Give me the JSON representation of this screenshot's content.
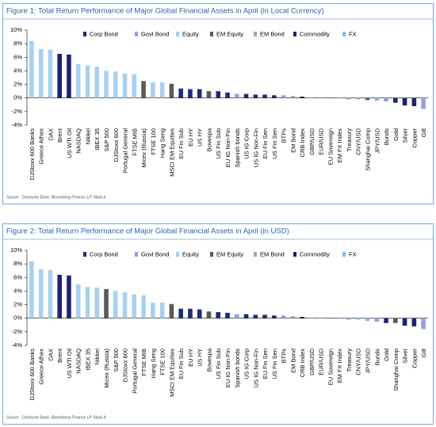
{
  "chart_data": [
    {
      "type": "bar",
      "title": "Figure 1: Total Return Performance of Major Global Financial Assets in April (in Local Currency)",
      "categories": [
        "DJStoxx 600 Banks",
        "Greece Athex",
        "DAX",
        "Brent",
        "US WTI Oil",
        "NASDAQ",
        "Nikkei",
        "IBEX 35",
        "S&P 500",
        "DJStoxx 600",
        "Portugal General",
        "FTSE MIB",
        "Micex (Russia)",
        "FTSE 100",
        "Hang Seng",
        "MSCI EM Equities",
        "EU Fin Sub",
        "EU HY",
        "US HY",
        "Bovespa",
        "US Fin Sub",
        "EU IG Non-Fin",
        "Spanish bonds",
        "US IG Corp",
        "US IG Non-Fin",
        "EU Fin Sen",
        "US Fin Sen",
        "BTPs",
        "EM Bond",
        "CRB Index",
        "GBP/USD",
        "EUR/USD",
        "EU Sovereign",
        "EM FX Index",
        "Treasury",
        "CNY/USD",
        "Shanghai Comp",
        "JPY/USD",
        "Bunds",
        "Gold",
        "Silver",
        "Copper",
        "Gilt"
      ],
      "values": [
        8.4,
        7.2,
        7.1,
        6.5,
        6.4,
        5.0,
        4.8,
        4.6,
        4.0,
        3.9,
        3.6,
        3.5,
        2.5,
        2.3,
        2.3,
        2.1,
        1.4,
        1.3,
        1.3,
        1.0,
        1.0,
        0.8,
        0.6,
        0.6,
        0.5,
        0.5,
        0.4,
        0.4,
        0.3,
        0.2,
        0.1,
        0.05,
        0.0,
        -0.05,
        -0.2,
        -0.2,
        -0.3,
        -0.4,
        -0.5,
        -0.7,
        -1.1,
        -1.2,
        -1.6
      ],
      "colors": [
        "#a8d0f0",
        "#a8d0f0",
        "#a8d0f0",
        "#1c2470",
        "#1c2470",
        "#a8d0f0",
        "#a8d0f0",
        "#a8d0f0",
        "#a8d0f0",
        "#a8d0f0",
        "#a8d0f0",
        "#a8d0f0",
        "#5a5a5a",
        "#a8d0f0",
        "#a8d0f0",
        "#5a5a5a",
        "#1f2a7a",
        "#1f2a7a",
        "#1f2a7a",
        "#5a5a5a",
        "#1f2a7a",
        "#1f2a7a",
        "#9a9ee0",
        "#1f2a7a",
        "#1f2a7a",
        "#1f2a7a",
        "#1f2a7a",
        "#9a9ee0",
        "#a6a6a6",
        "#1c2470",
        "#8fb8e6",
        "#8fb8e6",
        "#9a9ee0",
        "#8fb8e6",
        "#9a9ee0",
        "#8fb8e6",
        "#5a5a5a",
        "#8fb8e6",
        "#9a9ee0",
        "#1c2470",
        "#1c2470",
        "#1c2470",
        "#9a9ee0"
      ],
      "legend": [
        {
          "name": "Corp Bond",
          "color": "#1f2a7a"
        },
        {
          "name": "Govt Bond",
          "color": "#9a9ee0"
        },
        {
          "name": "Equity",
          "color": "#a8d0f0"
        },
        {
          "name": "EM Equity",
          "color": "#5a5a5a"
        },
        {
          "name": "EM Bond",
          "color": "#a6a6a6"
        },
        {
          "name": "Commodity",
          "color": "#1c2470"
        },
        {
          "name": "FX",
          "color": "#8fb8e6"
        }
      ],
      "ylim": [
        -4,
        10
      ],
      "yticks": [
        {
          "value": -4,
          "label": "-4%"
        },
        {
          "value": -2,
          "label": "-2%"
        },
        {
          "value": 0,
          "label": "0%"
        },
        {
          "value": 2,
          "label": "2%"
        },
        {
          "value": 4,
          "label": "4%"
        },
        {
          "value": 6,
          "label": "6%"
        },
        {
          "value": 8,
          "label": "8%"
        },
        {
          "value": 10,
          "label": "10%"
        }
      ],
      "source": "Source : Deutsche Bank, Bloomberg Finance LP, Mark-It"
    },
    {
      "type": "bar",
      "title": "Figure 2: Total Return Performance of Major Global Financial Assets in April (in USD)",
      "categories": [
        "DJStoxx 600 Banks",
        "Greece Athex",
        "DAX",
        "Brent",
        "US WTI Oil",
        "NASDAQ",
        "IBEX 35",
        "Nikkei",
        "Micex (Russia)",
        "S&P 500",
        "DJStoxx 600",
        "Portugal General",
        "FTSE MIB",
        "Hang Seng",
        "FTSE 100",
        "MSCI EM Equities",
        "EU Fin Sub",
        "EU HY",
        "US HY",
        "Bovespa",
        "US Fin Sub",
        "EU IG Non-Fin",
        "Spanish bonds",
        "US IG Corp",
        "US IG Non-Fin",
        "EU Fin Sen",
        "US Fin Sen",
        "BTPs",
        "EM Bond",
        "CRB Index",
        "GBP/USD",
        "EUR/USD",
        "EU Sovereign",
        "EM FX Index",
        "Treasury",
        "CNY/USD",
        "JPY/USD",
        "Bunds",
        "Gold",
        "Shanghai Comp",
        "Silver",
        "Copper",
        "Gilt"
      ],
      "values": [
        8.4,
        7.2,
        7.1,
        6.4,
        6.3,
        5.0,
        4.6,
        4.5,
        4.3,
        4.0,
        3.8,
        3.5,
        3.4,
        2.3,
        2.3,
        2.1,
        1.4,
        1.4,
        1.3,
        1.0,
        0.9,
        0.8,
        0.6,
        0.6,
        0.5,
        0.5,
        0.4,
        0.4,
        0.3,
        0.2,
        0.1,
        0.05,
        0.0,
        -0.05,
        -0.2,
        -0.2,
        -0.4,
        -0.5,
        -0.7,
        -0.7,
        -1.1,
        -1.2,
        -1.6
      ],
      "colors": [
        "#a8d0f0",
        "#a8d0f0",
        "#a8d0f0",
        "#1c2470",
        "#1c2470",
        "#a8d0f0",
        "#a8d0f0",
        "#a8d0f0",
        "#5a5a5a",
        "#a8d0f0",
        "#a8d0f0",
        "#a8d0f0",
        "#a8d0f0",
        "#a8d0f0",
        "#a8d0f0",
        "#5a5a5a",
        "#1f2a7a",
        "#1f2a7a",
        "#1f2a7a",
        "#5a5a5a",
        "#1f2a7a",
        "#1f2a7a",
        "#9a9ee0",
        "#1f2a7a",
        "#1f2a7a",
        "#1f2a7a",
        "#1f2a7a",
        "#9a9ee0",
        "#a6a6a6",
        "#1c2470",
        "#8fb8e6",
        "#8fb8e6",
        "#9a9ee0",
        "#8fb8e6",
        "#9a9ee0",
        "#8fb8e6",
        "#8fb8e6",
        "#9a9ee0",
        "#1c2470",
        "#5a5a5a",
        "#1c2470",
        "#1c2470",
        "#9a9ee0"
      ],
      "legend": [
        {
          "name": "Corp Bond",
          "color": "#1f2a7a"
        },
        {
          "name": "Govt Bond",
          "color": "#9a9ee0"
        },
        {
          "name": "Equity",
          "color": "#a8d0f0"
        },
        {
          "name": "EM Equity",
          "color": "#5a5a5a"
        },
        {
          "name": "EM Bond",
          "color": "#a6a6a6"
        },
        {
          "name": "Commodity",
          "color": "#1c2470"
        },
        {
          "name": "FX",
          "color": "#8fb8e6"
        }
      ],
      "ylim": [
        -4,
        10
      ],
      "yticks": [
        {
          "value": -4,
          "label": "-4%"
        },
        {
          "value": -2,
          "label": "-2%"
        },
        {
          "value": 0,
          "label": "0%"
        },
        {
          "value": 2,
          "label": "2%"
        },
        {
          "value": 4,
          "label": "4%"
        },
        {
          "value": 6,
          "label": "6%"
        },
        {
          "value": 8,
          "label": "8%"
        },
        {
          "value": 10,
          "label": "10%"
        }
      ],
      "source": "Source : Deutsche Bank, Bloomberg Finance LP, Mark-It"
    }
  ]
}
